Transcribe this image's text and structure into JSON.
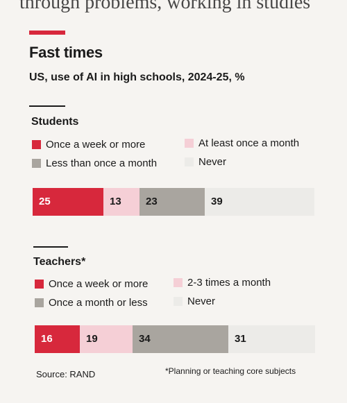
{
  "top_fragment": "through problems, working in studies",
  "title": "Fast times",
  "subtitle": "US, use of AI in high schools, 2024-25, %",
  "colors": {
    "weekly": "#d7283c",
    "monthly": "#f5cfd6",
    "less": "#a9a59f",
    "never": "#ecebe8",
    "accent": "#d7283c"
  },
  "chart_data": [
    {
      "type": "bar",
      "title": "Students",
      "categories": [
        "Once a week or more",
        "At least once a month",
        "Less than once a month",
        "Never"
      ],
      "values": [
        25,
        13,
        23,
        39
      ],
      "xlim": [
        0,
        100
      ],
      "stacked": true,
      "legend_position": "top"
    },
    {
      "type": "bar",
      "title": "Teachers*",
      "categories": [
        "Once a week or more",
        "2-3 times a month",
        "Once a month or less",
        "Never"
      ],
      "values": [
        16,
        19,
        34,
        31
      ],
      "xlim": [
        0,
        100
      ],
      "stacked": true,
      "legend_position": "top"
    }
  ],
  "source": "Source: RAND",
  "footnote": "*Planning or teaching core subjects"
}
